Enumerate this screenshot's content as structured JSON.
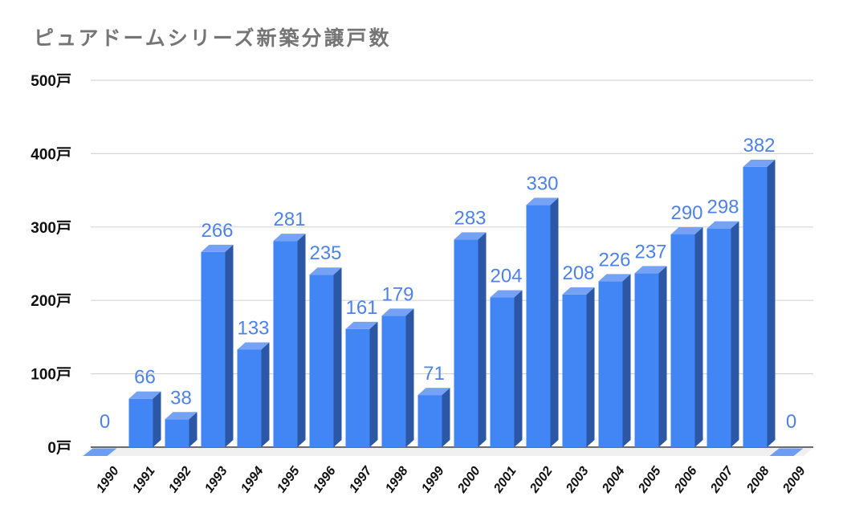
{
  "chart_data": {
    "type": "bar",
    "style": "3d-column",
    "title": "ピュアドームシリーズ新築分譲戸数",
    "unit": "戸",
    "categories": [
      "1990",
      "1991",
      "1992",
      "1993",
      "1994",
      "1995",
      "1996",
      "1997",
      "1998",
      "1999",
      "2000",
      "2001",
      "2002",
      "2003",
      "2004",
      "2005",
      "2006",
      "2007",
      "2008",
      "2009"
    ],
    "values": [
      0,
      66,
      38,
      266,
      133,
      281,
      235,
      161,
      179,
      71,
      283,
      204,
      330,
      208,
      226,
      237,
      290,
      298,
      382,
      0
    ],
    "xlabel": "",
    "ylabel": "",
    "ylim": [
      0,
      500
    ],
    "yticks": [
      0,
      100,
      200,
      300,
      400,
      500
    ],
    "ytick_labels": [
      "0戸",
      "100戸",
      "200戸",
      "300戸",
      "400戸",
      "500戸"
    ],
    "grid": true,
    "legend": "none",
    "colors": {
      "bar_front": "#4285F4",
      "bar_top": "#76A2F6",
      "bar_side": "#2B57A5",
      "bar_zero": "#6D9CF4",
      "value_label": "#4D82EB",
      "gridline": "#D6D6D6",
      "axis": "#3C3C3C",
      "floor": "#F0F0F0",
      "title_text": "#757575",
      "tick_text": "#111111",
      "background": "#FFFFFF"
    }
  }
}
